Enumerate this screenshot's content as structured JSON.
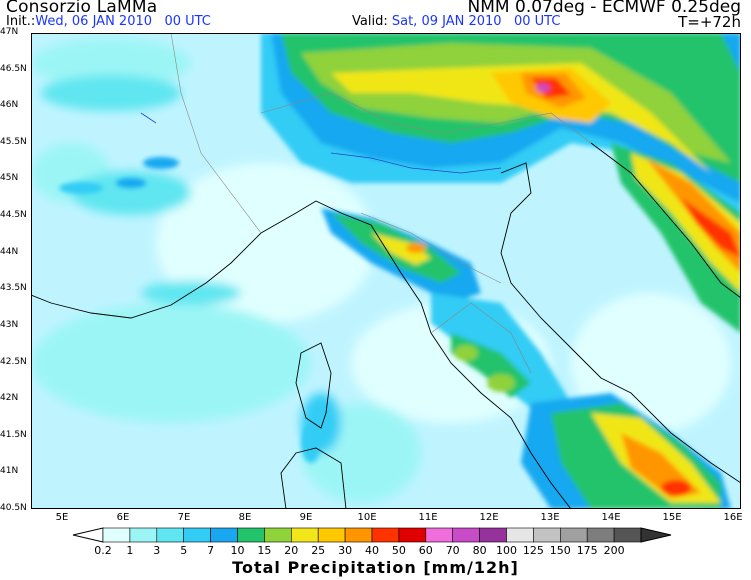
{
  "header": {
    "title_left": "Consorzio LaMMa",
    "title_right": "NMM 0.07deg - ECMWF 0.25deg",
    "init_label": "Init.:",
    "init_value": "Wed, 06 JAN 2010",
    "init_time": "00 UTC",
    "valid_label": "Valid:",
    "valid_value": "Sat, 09 JAN 2010",
    "valid_time": "00 UTC",
    "forecast_step": "T=+72h"
  },
  "map": {
    "lat_labels": [
      "47N",
      "46.5N",
      "46N",
      "45.5N",
      "45N",
      "44.5N",
      "44N",
      "43.5N",
      "43N",
      "42.5N",
      "42N",
      "41.5N",
      "41N",
      "40.5N"
    ],
    "lon_labels": [
      "5E",
      "6E",
      "7E",
      "8E",
      "9E",
      "10E",
      "11E",
      "12E",
      "13E",
      "14E",
      "15E",
      "16E"
    ]
  },
  "colorbar": {
    "title": "Total Precipitation [mm/12h]",
    "levels": [
      "0.2",
      "1",
      "3",
      "5",
      "7",
      "10",
      "15",
      "20",
      "25",
      "30",
      "40",
      "50",
      "60",
      "70",
      "80",
      "100",
      "125",
      "150",
      "175",
      "200"
    ],
    "colors": [
      "#e0ffff",
      "#9cf5f5",
      "#5fe6f0",
      "#33ccf5",
      "#19a8f0",
      "#22c36a",
      "#8fd23a",
      "#f0e619",
      "#ffc800",
      "#ff9600",
      "#ff3200",
      "#e10000",
      "#f06edc",
      "#c84bc8",
      "#96329b",
      "#e6e6e6",
      "#c3c3c3",
      "#a0a0a0",
      "#7d7d7d",
      "#555555"
    ]
  }
}
